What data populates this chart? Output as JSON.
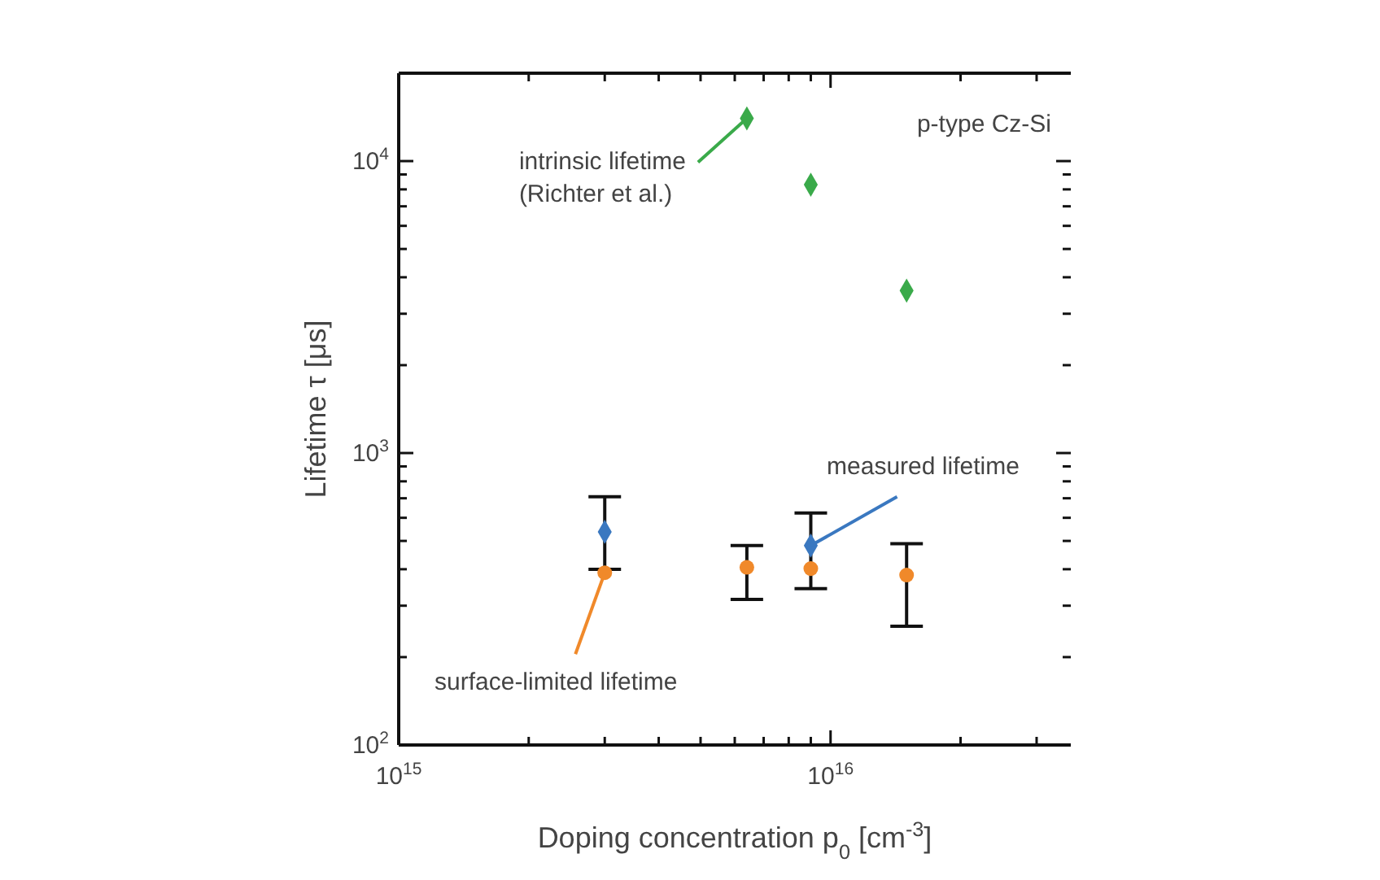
{
  "chart_data": {
    "type": "scatter",
    "xlabel": "Doping concentration p$_{0}$ [cm$^{-3}$]",
    "ylabel": "Lifetime τ [μs]",
    "log": "xy",
    "xlim": [
      1000000000000000.0,
      3.6e+16
    ],
    "xticks": [
      {
        "value": 1000000000000000.0,
        "label": "10$^{15}$"
      },
      {
        "value": 2000000000000000.0,
        "label": null
      },
      {
        "value": 3000000000000000.0,
        "label": null
      },
      {
        "value": 4000000000000000.0,
        "label": null
      },
      {
        "value": 5000000000000000.0,
        "label": null
      },
      {
        "value": 6000000000000000.0,
        "label": null
      },
      {
        "value": 7000000000000000.0,
        "label": null
      },
      {
        "value": 8000000000000000.0,
        "label": null
      },
      {
        "value": 9000000000000000.0,
        "label": null
      },
      {
        "value": 1e+16,
        "label": "10$^{16}$"
      },
      {
        "value": 2e+16,
        "label": null
      },
      {
        "value": 3e+16,
        "label": null
      }
    ],
    "ylim": [
      100,
      20000
    ],
    "yticks": [
      {
        "value": 100,
        "label": "10$^{2}$"
      },
      {
        "value": 200,
        "label": null
      },
      {
        "value": 300,
        "label": null
      },
      {
        "value": 400,
        "label": null
      },
      {
        "value": 500,
        "label": null
      },
      {
        "value": 600,
        "label": null
      },
      {
        "value": 700,
        "label": null
      },
      {
        "value": 800,
        "label": null
      },
      {
        "value": 900,
        "label": null
      },
      {
        "value": 1000,
        "label": "10$^{3}$"
      },
      {
        "value": 2000,
        "label": null
      },
      {
        "value": 3000,
        "label": null
      },
      {
        "value": 4000,
        "label": null
      },
      {
        "value": 5000,
        "label": null
      },
      {
        "value": 6000,
        "label": null
      },
      {
        "value": 7000,
        "label": null
      },
      {
        "value": 8000,
        "label": null
      },
      {
        "value": 9000,
        "label": null
      },
      {
        "value": 10000,
        "label": "10$^{4}$"
      }
    ],
    "annotations": [
      {
        "text": "intrinsic lifetime\n(Richter et al.)",
        "x": 6400000000000000.0,
        "y": 14000
      },
      {
        "text": "measured lifetime",
        "x": 9000000000000000.0,
        "y": 482
      },
      {
        "text": "surface-limited lifetime",
        "x": 3000000000000000.0,
        "y": 389
      },
      "p-type Cz-Si"
    ],
    "series": [
      {
        "marker": "diamond",
        "color": "#3aaa4a",
        "x": [
          6400000000000000.0,
          9000000000000000.0,
          1.5e+16
        ],
        "values": [
          14000,
          8300,
          3600
        ]
      },
      {
        "marker": "diamond",
        "color": "#3a78c0",
        "x": [
          3000000000000000.0,
          9000000000000000.0
        ],
        "values": [
          537,
          482
        ],
        "errors": [
          [
            400,
            708
          ],
          [
            343,
            623
          ]
        ]
      },
      {
        "marker": "circle",
        "color": "#f0892a",
        "x": [
          3000000000000000.0,
          6400000000000000.0,
          9000000000000000.0,
          1.5e+16
        ],
        "values": [
          389,
          406,
          402,
          382
        ],
        "errors": [
          null,
          [
            315,
            482
          ],
          null,
          [
            255,
            489
          ]
        ]
      }
    ]
  }
}
